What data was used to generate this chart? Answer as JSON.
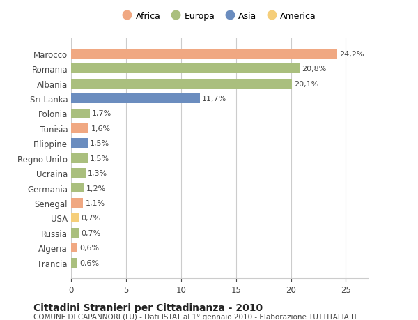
{
  "countries": [
    "Francia",
    "Algeria",
    "Russia",
    "USA",
    "Senegal",
    "Germania",
    "Ucraina",
    "Regno Unito",
    "Filippine",
    "Tunisia",
    "Polonia",
    "Sri Lanka",
    "Albania",
    "Romania",
    "Marocco"
  ],
  "values": [
    0.6,
    0.6,
    0.7,
    0.7,
    1.1,
    1.2,
    1.3,
    1.5,
    1.5,
    1.6,
    1.7,
    11.7,
    20.1,
    20.8,
    24.2
  ],
  "labels": [
    "0,6%",
    "0,6%",
    "0,7%",
    "0,7%",
    "1,1%",
    "1,2%",
    "1,3%",
    "1,5%",
    "1,5%",
    "1,6%",
    "1,7%",
    "11,7%",
    "20,1%",
    "20,8%",
    "24,2%"
  ],
  "continents": [
    "Europa",
    "Africa",
    "Europa",
    "America",
    "Africa",
    "Europa",
    "Europa",
    "Europa",
    "Asia",
    "Africa",
    "Europa",
    "Asia",
    "Europa",
    "Europa",
    "Africa"
  ],
  "colors": {
    "Africa": "#F0A882",
    "Europa": "#AABF7E",
    "Asia": "#6B8DBF",
    "America": "#F5CE7A"
  },
  "legend_order": [
    "Africa",
    "Europa",
    "Asia",
    "America"
  ],
  "title": "Cittadini Stranieri per Cittadinanza - 2010",
  "subtitle": "COMUNE DI CAPANNORI (LU) - Dati ISTAT al 1° gennaio 2010 - Elaborazione TUTTITALIA.IT",
  "xlim": [
    0,
    27
  ],
  "xticks": [
    0,
    5,
    10,
    15,
    20,
    25
  ],
  "background_color": "#ffffff",
  "grid_color": "#cccccc"
}
